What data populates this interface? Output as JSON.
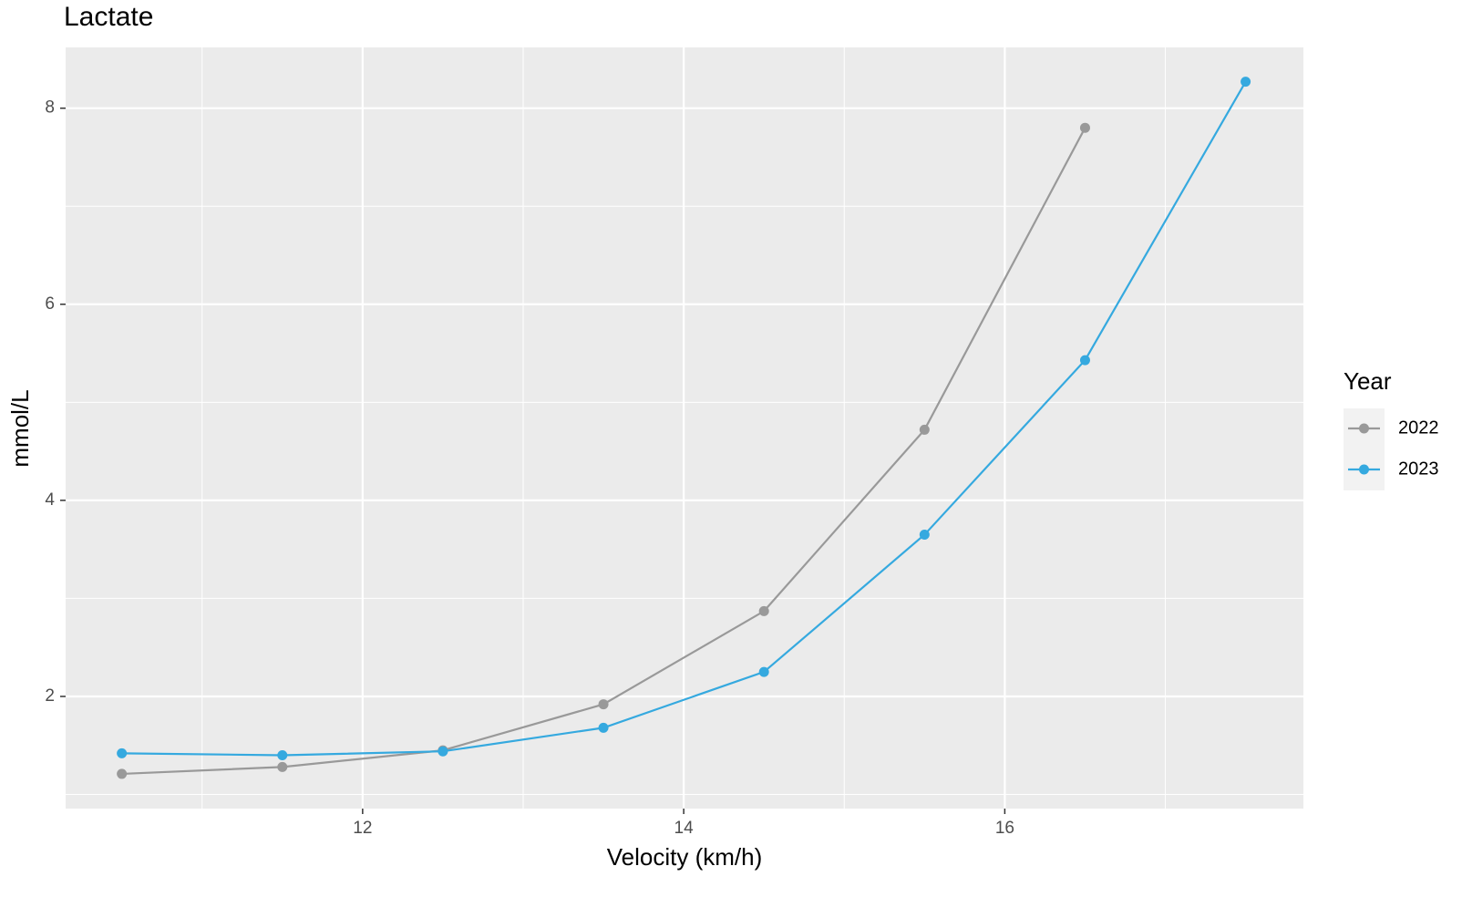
{
  "chart_data": {
    "type": "line",
    "title": "Lactate",
    "x_label": "Velocity (km/h)",
    "y_label": "mmol/L",
    "x": [
      10.5,
      11.5,
      12.5,
      13.5,
      14.5,
      15.5,
      16.5,
      17.5
    ],
    "series": [
      {
        "name": "2022",
        "color": "#999999",
        "values": [
          1.21,
          1.28,
          1.45,
          1.92,
          2.87,
          4.72,
          7.8,
          null
        ]
      },
      {
        "name": "2023",
        "color": "#35a9df",
        "values": [
          1.42,
          1.4,
          1.44,
          1.68,
          2.25,
          3.65,
          5.43,
          8.27
        ]
      }
    ],
    "xlim": [
      10.15,
      17.86
    ],
    "ylim": [
      0.856,
      8.62
    ],
    "xticks": [
      12,
      14,
      16
    ],
    "yticks": [
      2,
      4,
      6,
      8
    ],
    "xminor": [
      11,
      13,
      15,
      17
    ],
    "yminor": [
      1,
      3,
      5,
      7
    ],
    "grid": true,
    "legend_title": "Year",
    "legend_position": "right"
  }
}
